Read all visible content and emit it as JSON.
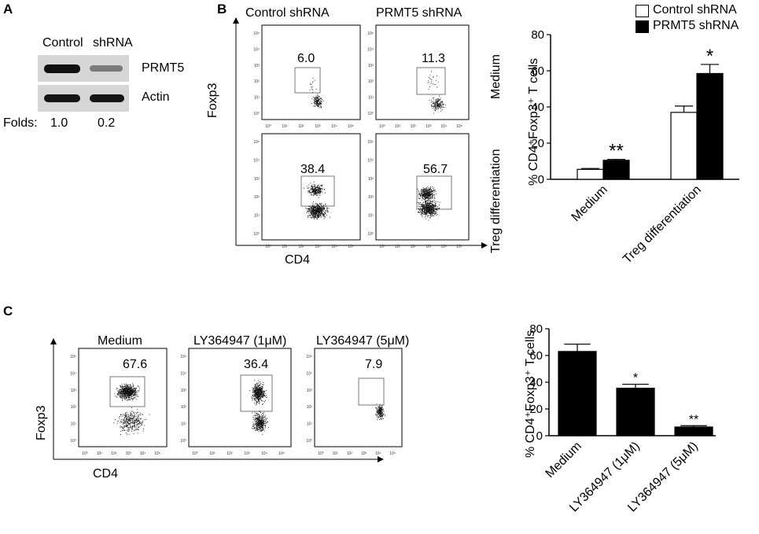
{
  "panels": {
    "a": {
      "letter": "A",
      "header_control": "Control",
      "header_shrna": "shRNA",
      "rows": [
        {
          "label": "PRMT5",
          "control_intensity": 1.0,
          "shrna_intensity": 0.2
        },
        {
          "label": "Actin",
          "control_intensity": 1.0,
          "shrna_intensity": 1.0
        }
      ],
      "folds_label": "Folds:",
      "folds": [
        "1.0",
        "0.2"
      ]
    },
    "b": {
      "letter": "B",
      "col_headers": [
        "Control shRNA",
        "PRMT5  shRNA"
      ],
      "row_labels": [
        "Medium",
        "Treg differentiation"
      ],
      "y_axis": "Foxp3",
      "x_axis": "CD4",
      "tick_labels": [
        "10⁰",
        "10¹",
        "10²",
        "10³",
        "10⁴",
        "10⁵"
      ],
      "gate_values": [
        "6.0",
        "11.3",
        "38.4",
        "56.7"
      ]
    },
    "c": {
      "letter": "C",
      "col_headers": [
        "Medium",
        "LY364947 (1μM)",
        "LY364947 (5μM)"
      ],
      "y_axis": "Foxp3",
      "x_axis": "CD4",
      "gate_values": [
        "67.6",
        "36.4",
        "7.9"
      ]
    }
  },
  "chart_data": [
    {
      "type": "bar",
      "title": "",
      "ylabel": "% CD4⁺Foxp3⁺ T cells",
      "categories": [
        "Medium",
        "Treg differentiation"
      ],
      "series": [
        {
          "name": "Control shRNA",
          "values": [
            5.5,
            37
          ],
          "errors": [
            0.5,
            3.5
          ],
          "color": "#ffffff"
        },
        {
          "name": "PRMT5 shRNA",
          "values": [
            10.5,
            58.5
          ],
          "errors": [
            0.5,
            5
          ],
          "color": "#000000"
        }
      ],
      "annotations": [
        "**",
        "*"
      ],
      "ylim": [
        0,
        80
      ],
      "yticks": [
        "0",
        "20",
        "40",
        "60",
        "80"
      ],
      "legend": "top-right"
    },
    {
      "type": "bar",
      "title": "",
      "ylabel": "% CD4⁺Foxp3⁺ T cells",
      "categories": [
        "Medium",
        "LY364947 (1μM)",
        "LY364947 (5μM)"
      ],
      "series": [
        {
          "values": [
            63,
            35.5,
            6.5
          ],
          "errors": [
            5.5,
            3,
            1
          ],
          "color": "#000000"
        }
      ],
      "annotations": [
        "",
        "*",
        "**"
      ],
      "ylim": [
        0,
        80
      ],
      "yticks": [
        "0",
        "20",
        "40",
        "60",
        "80"
      ]
    }
  ]
}
